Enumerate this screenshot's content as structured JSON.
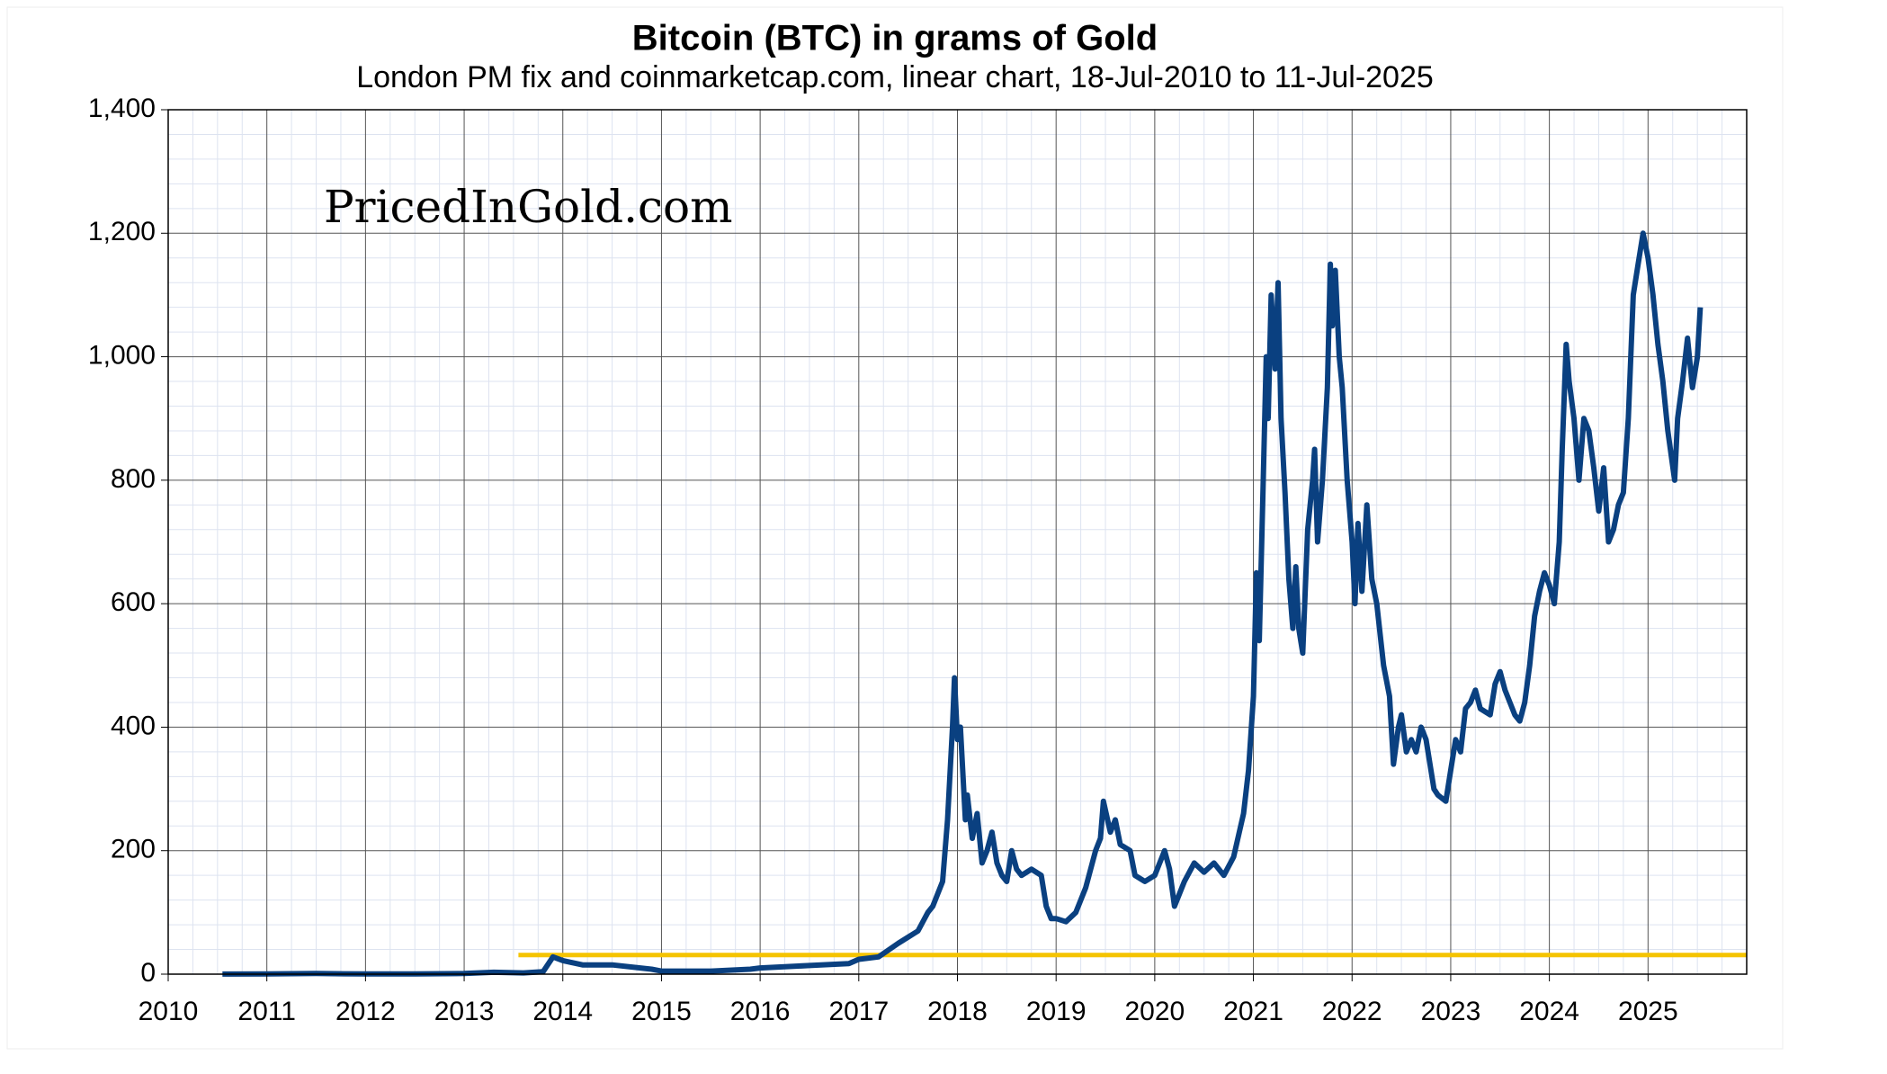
{
  "chart_data": {
    "type": "line",
    "title": "Bitcoin (BTC) in grams of Gold",
    "subtitle": "London PM fix and coinmarketcap.com, linear chart, 18-Jul-2010 to 11-Jul-2025",
    "watermark": "PricedInGold.com",
    "xlim": [
      2010,
      2026
    ],
    "xticks": [
      2010,
      2011,
      2012,
      2013,
      2014,
      2015,
      2016,
      2017,
      2018,
      2019,
      2020,
      2021,
      2022,
      2023,
      2024,
      2025
    ],
    "ylim": [
      0,
      1400
    ],
    "yticks": [
      0,
      200,
      400,
      600,
      800,
      {
        "value": 1000,
        "label": "1,000"
      },
      {
        "value": 1200,
        "label": "1,200"
      },
      {
        "value": 1400,
        "label": "1,400"
      }
    ],
    "grid": true,
    "series": [
      {
        "color": "#0a4080",
        "x": [
          2010.55,
          2011.0,
          2011.5,
          2012.0,
          2012.5,
          2013.0,
          2013.3,
          2013.6,
          2013.8,
          2013.9,
          2014.0,
          2014.2,
          2014.5,
          2014.9,
          2015.0,
          2015.5,
          2015.9,
          2016.0,
          2016.5,
          2016.9,
          2017.0,
          2017.2,
          2017.4,
          2017.5,
          2017.6,
          2017.7,
          2017.75,
          2017.85,
          2017.9,
          2017.95,
          2017.97,
          2018.0,
          2018.03,
          2018.08,
          2018.1,
          2018.15,
          2018.2,
          2018.25,
          2018.3,
          2018.35,
          2018.4,
          2018.45,
          2018.5,
          2018.55,
          2018.6,
          2018.65,
          2018.75,
          2018.85,
          2018.9,
          2018.95,
          2019.0,
          2019.1,
          2019.2,
          2019.3,
          2019.4,
          2019.45,
          2019.48,
          2019.55,
          2019.6,
          2019.65,
          2019.75,
          2019.8,
          2019.9,
          2020.0,
          2020.1,
          2020.15,
          2020.2,
          2020.3,
          2020.4,
          2020.5,
          2020.6,
          2020.7,
          2020.8,
          2020.9,
          2020.95,
          2021.0,
          2021.03,
          2021.06,
          2021.1,
          2021.13,
          2021.15,
          2021.18,
          2021.22,
          2021.25,
          2021.28,
          2021.32,
          2021.36,
          2021.4,
          2021.43,
          2021.46,
          2021.5,
          2021.55,
          2021.6,
          2021.62,
          2021.65,
          2021.7,
          2021.75,
          2021.78,
          2021.8,
          2021.83,
          2021.87,
          2021.9,
          2021.95,
          2022.0,
          2022.03,
          2022.06,
          2022.1,
          2022.15,
          2022.2,
          2022.25,
          2022.32,
          2022.38,
          2022.42,
          2022.47,
          2022.5,
          2022.55,
          2022.6,
          2022.65,
          2022.7,
          2022.75,
          2022.83,
          2022.87,
          2022.95,
          2023.0,
          2023.05,
          2023.1,
          2023.15,
          2023.2,
          2023.25,
          2023.3,
          2023.4,
          2023.45,
          2023.5,
          2023.55,
          2023.65,
          2023.7,
          2023.75,
          2023.8,
          2023.85,
          2023.9,
          2023.95,
          2024.0,
          2024.05,
          2024.1,
          2024.13,
          2024.17,
          2024.2,
          2024.25,
          2024.3,
          2024.35,
          2024.4,
          2024.45,
          2024.5,
          2024.55,
          2024.6,
          2024.65,
          2024.7,
          2024.75,
          2024.8,
          2024.85,
          2024.9,
          2024.95,
          2025.0,
          2025.05,
          2025.1,
          2025.15,
          2025.2,
          2025.27,
          2025.3,
          2025.35,
          2025.4,
          2025.45,
          2025.5,
          2025.53
        ],
        "values": [
          0.1,
          0.5,
          1,
          0.3,
          0.5,
          1,
          3,
          2,
          4,
          28,
          22,
          15,
          15,
          8,
          5,
          5,
          8,
          10,
          14,
          17,
          24,
          28,
          50,
          60,
          70,
          100,
          110,
          150,
          250,
          400,
          480,
          380,
          400,
          250,
          290,
          220,
          260,
          180,
          200,
          230,
          180,
          160,
          150,
          200,
          170,
          160,
          170,
          160,
          110,
          90,
          90,
          85,
          100,
          140,
          200,
          220,
          280,
          230,
          250,
          210,
          200,
          160,
          150,
          160,
          200,
          170,
          110,
          150,
          180,
          165,
          180,
          160,
          190,
          260,
          330,
          450,
          650,
          540,
          800,
          1000,
          900,
          1100,
          980,
          1120,
          900,
          780,
          640,
          560,
          660,
          560,
          520,
          720,
          800,
          850,
          700,
          800,
          950,
          1150,
          1050,
          1140,
          1000,
          950,
          800,
          700,
          600,
          730,
          620,
          760,
          640,
          600,
          500,
          450,
          340,
          400,
          420,
          360,
          380,
          360,
          400,
          380,
          300,
          290,
          280,
          330,
          380,
          360,
          430,
          440,
          460,
          430,
          420,
          470,
          490,
          460,
          420,
          410,
          440,
          500,
          580,
          620,
          650,
          630,
          600,
          700,
          850,
          1020,
          960,
          900,
          800,
          900,
          880,
          820,
          750,
          820,
          700,
          720,
          760,
          780,
          900,
          1100,
          1150,
          1200,
          1160,
          1100,
          1020,
          960,
          880,
          800,
          900,
          960,
          1030,
          950,
          1000,
          1080
        ]
      },
      {
        "color": "#f5c400",
        "x": [
          2013.55,
          2026
        ],
        "values": [
          31,
          31
        ]
      }
    ]
  }
}
